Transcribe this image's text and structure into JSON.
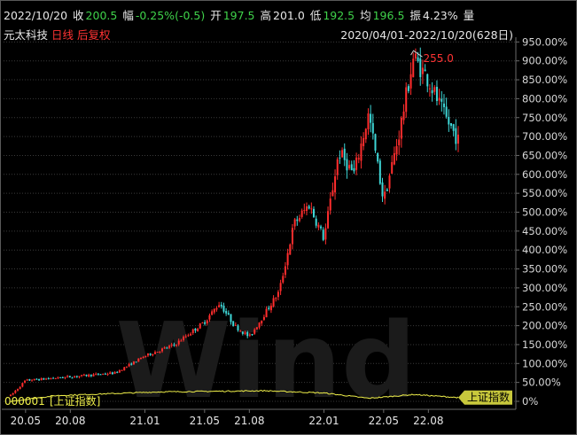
{
  "header": {
    "date": "2022/10/20",
    "close_label": "收",
    "close_value": "200.5",
    "change_label": "幅",
    "change_value": "-0.25%(-0.5)",
    "open_label": "开",
    "open_value": "197.5",
    "high_label": "高",
    "high_value": "201.0",
    "low_label": "低",
    "low_value": "192.5",
    "avg_label": "均",
    "avg_value": "196.5",
    "amp_label": "振",
    "amp_value": "4.23%",
    "vol_label": "量"
  },
  "subheader": {
    "stock_name": "元太科技",
    "period": "日线",
    "adjust": "后复权",
    "date_range": "2020/04/01-2022/10/20(628日)"
  },
  "watermark": "Wind",
  "colors": {
    "up": "#ff2d2d",
    "down": "#3ed6d6",
    "benchmark": "#f0f04a",
    "grid": "#3a3a3a",
    "positive_text": "#3fd24a",
    "negative_text": "#ff3333"
  },
  "chart_data": {
    "type": "candlestick",
    "unit": "%",
    "y_ticks": [
      "950.00%",
      "900.00%",
      "850.00%",
      "800.00%",
      "750.00%",
      "700.00%",
      "650.00%",
      "600.00%",
      "550.00%",
      "500.00%",
      "450.00%",
      "400.00%",
      "350.00%",
      "300.00%",
      "250.00%",
      "200.00%",
      "150.00%",
      "100.00%",
      "50.00%",
      "0%"
    ],
    "ylim": [
      -10,
      970
    ],
    "x_ticks": [
      "20.05",
      "20.08",
      "21.01",
      "21.05",
      "21.08",
      "22.01",
      "22.05",
      "22.08"
    ],
    "peak_label": "255.0",
    "peak_value_pct": 920,
    "main_series_anchors": [
      {
        "date": "2020-04",
        "pct": 15
      },
      {
        "date": "2020-05",
        "pct": 55
      },
      {
        "date": "2020-08",
        "pct": 65
      },
      {
        "date": "2020-11",
        "pct": 75
      },
      {
        "date": "2021-01",
        "pct": 120
      },
      {
        "date": "2021-03",
        "pct": 150
      },
      {
        "date": "2021-05",
        "pct": 210
      },
      {
        "date": "2021-06",
        "pct": 260
      },
      {
        "date": "2021-07",
        "pct": 200
      },
      {
        "date": "2021-08",
        "pct": 170
      },
      {
        "date": "2021-10",
        "pct": 290
      },
      {
        "date": "2021-11",
        "pct": 470
      },
      {
        "date": "2021-12",
        "pct": 520
      },
      {
        "date": "2022-01",
        "pct": 430
      },
      {
        "date": "2022-02",
        "pct": 660
      },
      {
        "date": "2022-03",
        "pct": 600
      },
      {
        "date": "2022-04",
        "pct": 760
      },
      {
        "date": "2022-05",
        "pct": 530
      },
      {
        "date": "2022-06",
        "pct": 700
      },
      {
        "date": "2022-07",
        "pct": 910
      },
      {
        "date": "2022-08",
        "pct": 850
      },
      {
        "date": "2022-09",
        "pct": 760
      },
      {
        "date": "2022-10",
        "pct": 690
      }
    ],
    "benchmark": {
      "code": "000001",
      "name": "[上证指数]",
      "label": "上证指数",
      "anchors": [
        {
          "date": "2020-04",
          "pct": 0
        },
        {
          "date": "2020-07",
          "pct": 15
        },
        {
          "date": "2021-02",
          "pct": 25
        },
        {
          "date": "2021-09",
          "pct": 28
        },
        {
          "date": "2022-01",
          "pct": 22
        },
        {
          "date": "2022-04",
          "pct": 8
        },
        {
          "date": "2022-07",
          "pct": 18
        },
        {
          "date": "2022-10",
          "pct": 10
        }
      ]
    }
  }
}
